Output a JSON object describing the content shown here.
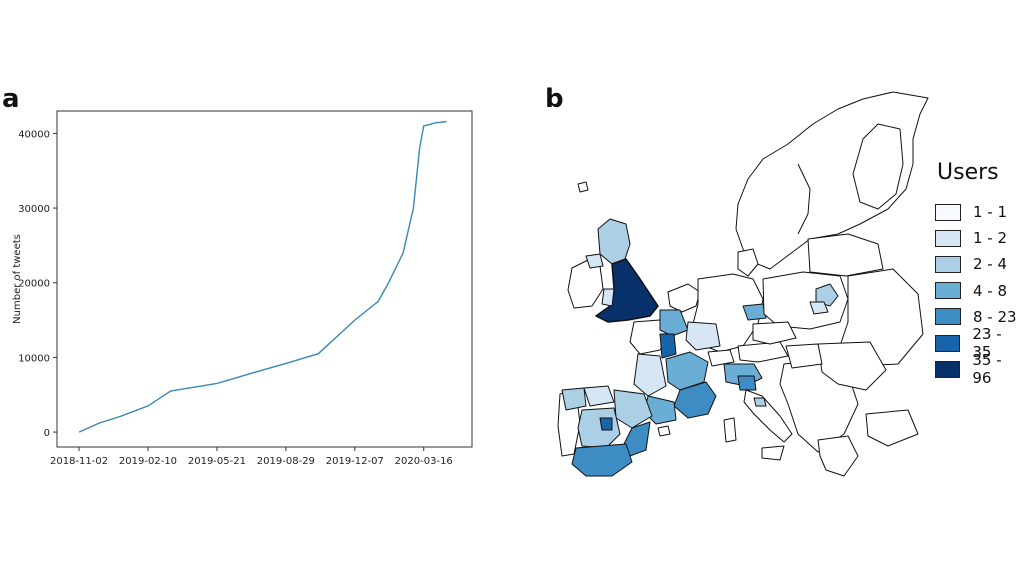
{
  "panels": {
    "a_label": "a",
    "b_label": "b"
  },
  "chart_data": {
    "type": "line",
    "title": "",
    "xlabel": "",
    "ylabel": "Number of tweets",
    "x_tick_labels": [
      "2018-11-02",
      "2019-02-10",
      "2019-05-21",
      "2019-08-29",
      "2019-12-07",
      "2020-03-16"
    ],
    "y_ticks": [
      0,
      10000,
      20000,
      30000,
      40000
    ],
    "ylim": [
      -2000,
      43000
    ],
    "x_range": [
      "2018-10-01",
      "2020-05-25"
    ],
    "grid": false,
    "color": "#3b87b5",
    "series": [
      {
        "x": [
          "2018-11-02",
          "2018-12-01",
          "2019-01-01",
          "2019-02-10",
          "2019-03-15",
          "2019-05-21",
          "2019-07-15",
          "2019-08-29",
          "2019-10-15",
          "2019-12-07",
          "2020-01-10",
          "2020-01-25",
          "2020-02-15",
          "2020-03-01",
          "2020-03-10",
          "2020-03-16",
          "2020-03-25",
          "2020-04-01",
          "2020-04-10",
          "2020-04-18"
        ],
        "y": [
          0,
          1200,
          2100,
          3500,
          5500,
          6500,
          8000,
          9200,
          10500,
          15000,
          17500,
          20000,
          24000,
          30000,
          38000,
          41000,
          41200,
          41400,
          41500,
          41600
        ]
      }
    ]
  },
  "map_legend": {
    "title": "Users",
    "entries": [
      {
        "label": "1 - 1",
        "color": "#f7fbff"
      },
      {
        "label": "1 - 2",
        "color": "#d6e6f4"
      },
      {
        "label": "2 - 4",
        "color": "#abcfe5"
      },
      {
        "label": "4 - 8",
        "color": "#6aaed6"
      },
      {
        "label": "8 - 23",
        "color": "#3d8dc4"
      },
      {
        "label": "23 - 35",
        "color": "#1764ab"
      },
      {
        "label": "35 - 96",
        "color": "#08306b"
      }
    ]
  }
}
